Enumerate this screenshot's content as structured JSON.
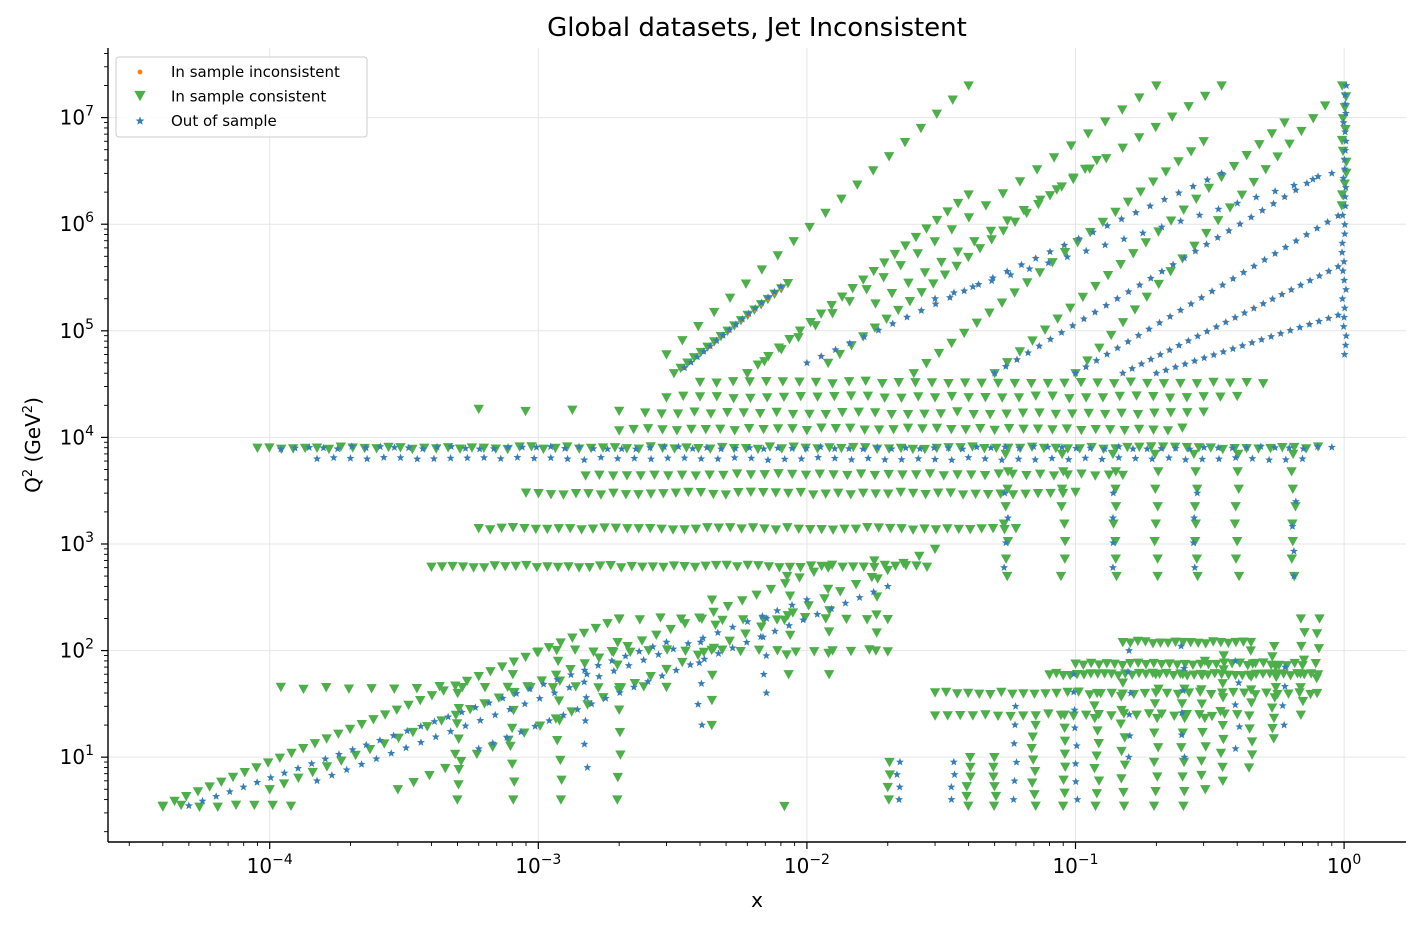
{
  "chart_data": {
    "type": "scatter",
    "title": "Global datasets, Jet Inconsistent",
    "xlabel": "x",
    "ylabel_base": "Q",
    "ylabel_sup": "2",
    "ylabel_unit_open": " (GeV",
    "ylabel_unit_sup": "2",
    "ylabel_unit_close": ")",
    "x_scale": "log",
    "y_scale": "log",
    "xlim": [
      2.5e-05,
      1.7
    ],
    "ylim": [
      1.6,
      45000000.0
    ],
    "grid": true,
    "legend_position": "top-left",
    "x_ticks": [
      {
        "base": "10",
        "exp": "−4",
        "value": 0.0001
      },
      {
        "base": "10",
        "exp": "−3",
        "value": 0.001
      },
      {
        "base": "10",
        "exp": "−2",
        "value": 0.01
      },
      {
        "base": "10",
        "exp": "−1",
        "value": 0.1
      },
      {
        "base": "10",
        "exp": "0",
        "value": 1
      }
    ],
    "y_ticks": [
      {
        "base": "10",
        "exp": "1",
        "value": 10
      },
      {
        "base": "10",
        "exp": "2",
        "value": 100
      },
      {
        "base": "10",
        "exp": "3",
        "value": 1000
      },
      {
        "base": "10",
        "exp": "4",
        "value": 10000
      },
      {
        "base": "10",
        "exp": "5",
        "value": 100000
      },
      {
        "base": "10",
        "exp": "6",
        "value": 1000000
      },
      {
        "base": "10",
        "exp": "7",
        "value": 10000000
      }
    ],
    "series": [
      {
        "name": "In sample inconsistent",
        "marker": "circle",
        "color": "#ff7f0e"
      },
      {
        "name": "In sample consistent",
        "marker": "triangle-down",
        "color": "#4daf4a"
      },
      {
        "name": "Out of sample",
        "marker": "star",
        "color": "#377eb8"
      }
    ],
    "point_groups": [
      {
        "series": 1,
        "kind": "hline",
        "y": 8000,
        "x_range": [
          9e-05,
          0.8
        ],
        "n": 90
      },
      {
        "series": 2,
        "kind": "hline",
        "y": 8000,
        "x_range": [
          0.00011,
          0.9
        ],
        "n": 75
      },
      {
        "series": 2,
        "kind": "hline",
        "y": 6300,
        "x_range": [
          0.00015,
          0.7
        ],
        "n": 60
      },
      {
        "series": 1,
        "kind": "hline",
        "y": 620,
        "x_range": [
          0.0004,
          0.028
        ],
        "n": 48
      },
      {
        "series": 1,
        "kind": "hline",
        "y": 1400,
        "x_range": [
          0.0006,
          0.06
        ],
        "n": 48
      },
      {
        "series": 1,
        "kind": "hline",
        "y": 3000,
        "x_range": [
          0.0009,
          0.1
        ],
        "n": 45
      },
      {
        "series": 1,
        "kind": "hline",
        "y": 4500,
        "x_range": [
          0.0015,
          0.15
        ],
        "n": 40
      },
      {
        "series": 1,
        "kind": "hline",
        "y": 12000,
        "x_range": [
          0.002,
          0.25
        ],
        "n": 40
      },
      {
        "series": 1,
        "kind": "hline",
        "y": 17000,
        "x_range": [
          0.0025,
          0.3
        ],
        "n": 35
      },
      {
        "series": 1,
        "kind": "hline",
        "y": 24000,
        "x_range": [
          0.003,
          0.4
        ],
        "n": 35
      },
      {
        "series": 1,
        "kind": "hline",
        "y": 33000,
        "x_range": [
          0.004,
          0.5
        ],
        "n": 35
      },
      {
        "series": 1,
        "kind": "diag",
        "x_range": [
          0.0032,
          0.0085
        ],
        "y_range": [
          40000,
          280000
        ],
        "n": 18
      },
      {
        "series": 1,
        "kind": "diag",
        "x_range": [
          0.006,
          0.04
        ],
        "y_range": [
          40000,
          1900000
        ],
        "n": 22
      },
      {
        "series": 1,
        "kind": "diag",
        "x_range": [
          0.012,
          0.12
        ],
        "y_range": [
          50000,
          4000000
        ],
        "n": 24
      },
      {
        "series": 1,
        "kind": "diag",
        "x_range": [
          0.025,
          0.3
        ],
        "y_range": [
          40000,
          6000000
        ],
        "n": 24
      },
      {
        "series": 1,
        "kind": "diag",
        "x_range": [
          0.05,
          0.6
        ],
        "y_range": [
          40000,
          9000000
        ],
        "n": 24
      },
      {
        "series": 1,
        "kind": "diag",
        "x_range": [
          0.1,
          0.85
        ],
        "y_range": [
          40000,
          13000000
        ],
        "n": 22
      },
      {
        "series": 1,
        "kind": "diag",
        "x_range": [
          0.018,
          0.35
        ],
        "y_range": [
          180000,
          20000000
        ],
        "n": 22
      },
      {
        "series": 0,
        "kind": "diag",
        "x_range": [
          0.0035,
          0.008
        ],
        "y_range": [
          45000,
          250000
        ],
        "n": 16
      },
      {
        "series": 0,
        "kind": "diag",
        "x_range": [
          0.01,
          0.35
        ],
        "y_range": [
          50000,
          3000000
        ],
        "n": 30
      },
      {
        "series": 0,
        "kind": "diag",
        "x_range": [
          0.05,
          0.8
        ],
        "y_range": [
          40000,
          2800000
        ],
        "n": 30
      },
      {
        "series": 0,
        "kind": "diag",
        "x_range": [
          0.1,
          0.95
        ],
        "y_range": [
          40000,
          1200000
        ],
        "n": 26
      },
      {
        "series": 0,
        "kind": "diag",
        "x_range": [
          0.15,
          0.95
        ],
        "y_range": [
          40000,
          400000
        ],
        "n": 24
      },
      {
        "series": 0,
        "kind": "diag",
        "x_range": [
          0.2,
          0.95
        ],
        "y_range": [
          40000,
          140000
        ],
        "n": 20
      },
      {
        "series": 2,
        "kind": "diag",
        "x_range": [
          0.0035,
          0.008
        ],
        "y_range": [
          45000,
          260000
        ],
        "n": 16
      },
      {
        "series": 2,
        "kind": "diag",
        "x_range": [
          0.01,
          0.35
        ],
        "y_range": [
          50000,
          3000000
        ],
        "n": 30
      },
      {
        "series": 2,
        "kind": "diag",
        "x_range": [
          0.05,
          0.8
        ],
        "y_range": [
          40000,
          2800000
        ],
        "n": 30
      },
      {
        "series": 2,
        "kind": "diag",
        "x_range": [
          0.1,
          0.95
        ],
        "y_range": [
          40000,
          1200000
        ],
        "n": 26
      },
      {
        "series": 2,
        "kind": "diag",
        "x_range": [
          0.15,
          0.95
        ],
        "y_range": [
          40000,
          400000
        ],
        "n": 24
      },
      {
        "series": 2,
        "kind": "diag",
        "x_range": [
          0.2,
          0.95
        ],
        "y_range": [
          40000,
          140000
        ],
        "n": 20
      },
      {
        "series": 2,
        "kind": "diag",
        "x_range": [
          0.03,
          0.9
        ],
        "y_range": [
          200000,
          3000000
        ],
        "n": 22
      },
      {
        "series": 2,
        "kind": "vline",
        "x": 1.0,
        "y_range": [
          60000,
          20000000
        ],
        "n": 30
      },
      {
        "series": 1,
        "kind": "vline",
        "x": 1.0,
        "y_range": [
          1500000,
          20000000
        ],
        "n": 12
      },
      {
        "series": 1,
        "kind": "diag",
        "x_range": [
          4e-05,
          0.002
        ],
        "y_range": [
          3.5,
          200
        ],
        "n": 40
      },
      {
        "series": 1,
        "kind": "diag",
        "x_range": [
          0.0001,
          0.012
        ],
        "y_range": [
          5,
          620
        ],
        "n": 40
      },
      {
        "series": 1,
        "kind": "diag",
        "x_range": [
          0.0003,
          0.03
        ],
        "y_range": [
          5,
          900
        ],
        "n": 35
      },
      {
        "series": 1,
        "kind": "hline",
        "y": 3.5,
        "x_range": [
          4e-05,
          0.00012
        ],
        "n": 8
      },
      {
        "series": 2,
        "kind": "diag",
        "x_range": [
          5e-05,
          0.003
        ],
        "y_range": [
          3.5,
          120
        ],
        "n": 36
      },
      {
        "series": 2,
        "kind": "diag",
        "x_range": [
          0.00015,
          0.01
        ],
        "y_range": [
          6,
          300
        ],
        "n": 34
      },
      {
        "series": 2,
        "kind": "diag",
        "x_range": [
          0.0006,
          0.02
        ],
        "y_range": [
          12,
          400
        ],
        "n": 30
      },
      {
        "series": 2,
        "kind": "vline",
        "x": 0.022,
        "y_range": [
          4,
          9
        ],
        "n": 4
      },
      {
        "series": 2,
        "kind": "vline",
        "x": 0.035,
        "y_range": [
          4,
          9
        ],
        "n": 4
      },
      {
        "series": 2,
        "kind": "vline",
        "x": 0.06,
        "y_range": [
          4,
          30
        ],
        "n": 6
      },
      {
        "series": 2,
        "kind": "vline",
        "x": 0.1,
        "y_range": [
          4,
          60
        ],
        "n": 8
      },
      {
        "series": 2,
        "kind": "vline",
        "x": 0.16,
        "y_range": [
          10,
          100
        ],
        "n": 6
      },
      {
        "series": 2,
        "kind": "vline",
        "x": 0.25,
        "y_range": [
          10,
          110
        ],
        "n": 6
      },
      {
        "series": 2,
        "kind": "vline",
        "x": 0.4,
        "y_range": [
          12,
          80
        ],
        "n": 5
      },
      {
        "series": 2,
        "kind": "vline",
        "x": 0.6,
        "y_range": [
          20,
          70
        ],
        "n": 4
      },
      {
        "series": 1,
        "kind": "hline",
        "y": 60,
        "x_range": [
          0.08,
          0.8
        ],
        "n": 40
      },
      {
        "series": 1,
        "kind": "hline",
        "y": 75,
        "x_range": [
          0.1,
          0.7
        ],
        "n": 30
      },
      {
        "series": 1,
        "kind": "hline",
        "y": 120,
        "x_range": [
          0.15,
          0.45
        ],
        "n": 18
      },
      {
        "series": 1,
        "kind": "hline",
        "y": 25,
        "x_range": [
          0.03,
          0.4
        ],
        "n": 25
      },
      {
        "series": 1,
        "kind": "hline",
        "y": 40,
        "x_range": [
          0.03,
          0.75
        ],
        "n": 35
      },
      {
        "series": 1,
        "kind": "vline",
        "x": 0.02,
        "y_range": [
          4,
          9
        ],
        "n": 4
      },
      {
        "series": 1,
        "kind": "vline",
        "x": 0.04,
        "y_range": [
          3.5,
          10
        ],
        "n": 6
      },
      {
        "series": 1,
        "kind": "vline",
        "x": 0.05,
        "y_range": [
          3.5,
          10
        ],
        "n": 6
      },
      {
        "series": 1,
        "kind": "vline",
        "x": 0.07,
        "y_range": [
          3.5,
          20
        ],
        "n": 8
      },
      {
        "series": 1,
        "kind": "vline",
        "x": 0.09,
        "y_range": [
          3.5,
          25
        ],
        "n": 8
      },
      {
        "series": 1,
        "kind": "vline",
        "x": 0.12,
        "y_range": [
          3.5,
          40
        ],
        "n": 10
      },
      {
        "series": 1,
        "kind": "vline",
        "x": 0.15,
        "y_range": [
          3.5,
          50
        ],
        "n": 10
      },
      {
        "series": 1,
        "kind": "vline",
        "x": 0.2,
        "y_range": [
          3.5,
          60
        ],
        "n": 10
      },
      {
        "series": 1,
        "kind": "vline",
        "x": 0.25,
        "y_range": [
          3.5,
          60
        ],
        "n": 10
      },
      {
        "series": 1,
        "kind": "vline",
        "x": 0.3,
        "y_range": [
          5,
          80
        ],
        "n": 10
      },
      {
        "series": 1,
        "kind": "vline",
        "x": 0.35,
        "y_range": [
          6,
          90
        ],
        "n": 10
      },
      {
        "series": 1,
        "kind": "vline",
        "x": 0.45,
        "y_range": [
          8,
          100
        ],
        "n": 10
      },
      {
        "series": 1,
        "kind": "vline",
        "x": 0.55,
        "y_range": [
          15,
          110
        ],
        "n": 10
      },
      {
        "series": 1,
        "kind": "vline",
        "x": 0.7,
        "y_range": [
          25,
          200
        ],
        "n": 8
      },
      {
        "series": 1,
        "kind": "vline",
        "x": 0.8,
        "y_range": [
          40,
          200
        ],
        "n": 6
      },
      {
        "series": 1,
        "kind": "vline",
        "x": 0.055,
        "y_range": [
          500,
          7000
        ],
        "n": 8
      },
      {
        "series": 1,
        "kind": "vline",
        "x": 0.09,
        "y_range": [
          500,
          7000
        ],
        "n": 8
      },
      {
        "series": 1,
        "kind": "vline",
        "x": 0.14,
        "y_range": [
          500,
          7000
        ],
        "n": 8
      },
      {
        "series": 1,
        "kind": "vline",
        "x": 0.2,
        "y_range": [
          500,
          7000
        ],
        "n": 8
      },
      {
        "series": 1,
        "kind": "vline",
        "x": 0.28,
        "y_range": [
          500,
          7000
        ],
        "n": 8
      },
      {
        "series": 1,
        "kind": "vline",
        "x": 0.4,
        "y_range": [
          500,
          7000
        ],
        "n": 8
      },
      {
        "series": 1,
        "kind": "vline",
        "x": 0.65,
        "y_range": [
          500,
          7000
        ],
        "n": 8
      },
      {
        "series": 2,
        "kind": "vline",
        "x": 0.055,
        "y_range": [
          600,
          3000
        ],
        "n": 4
      },
      {
        "series": 2,
        "kind": "vline",
        "x": 0.14,
        "y_range": [
          600,
          3000
        ],
        "n": 4
      },
      {
        "series": 2,
        "kind": "vline",
        "x": 0.28,
        "y_range": [
          600,
          3000
        ],
        "n": 4
      },
      {
        "series": 2,
        "kind": "vline",
        "x": 0.65,
        "y_range": [
          500,
          2500
        ],
        "n": 4
      },
      {
        "series": 1,
        "kind": "vline",
        "x": 0.018,
        "y_range": [
          100,
          700
        ],
        "n": 6
      },
      {
        "series": 1,
        "kind": "vline",
        "x": 0.0085,
        "y_range": [
          60,
          500
        ],
        "n": 6
      },
      {
        "series": 1,
        "kind": "vline",
        "x": 0.012,
        "y_range": [
          60,
          600
        ],
        "n": 6
      },
      {
        "series": 1,
        "kind": "vline",
        "x": 0.0045,
        "y_range": [
          20,
          300
        ],
        "n": 6
      },
      {
        "series": 1,
        "kind": "vline",
        "x": 0.002,
        "y_range": [
          4,
          120
        ],
        "n": 8
      },
      {
        "series": 1,
        "kind": "vline",
        "x": 0.0012,
        "y_range": [
          4,
          80
        ],
        "n": 8
      },
      {
        "series": 1,
        "kind": "vline",
        "x": 0.0008,
        "y_range": [
          4,
          60
        ],
        "n": 8
      },
      {
        "series": 1,
        "kind": "vline",
        "x": 0.0005,
        "y_range": [
          4,
          40
        ],
        "n": 8
      },
      {
        "series": 2,
        "kind": "vline",
        "x": 0.0015,
        "y_range": [
          8,
          60
        ],
        "n": 5
      },
      {
        "series": 2,
        "kind": "vline",
        "x": 0.004,
        "y_range": [
          20,
          120
        ],
        "n": 5
      },
      {
        "series": 2,
        "kind": "vline",
        "x": 0.007,
        "y_range": [
          40,
          200
        ],
        "n": 5
      },
      {
        "series": 1,
        "kind": "hline",
        "y": 45,
        "x_range": [
          0.00011,
          0.003
        ],
        "n": 18
      },
      {
        "series": 1,
        "kind": "hline",
        "y": 18000,
        "x_range": [
          0.0006,
          0.002
        ],
        "n": 4
      },
      {
        "series": 1,
        "kind": "hline",
        "y": 100,
        "x_range": [
          0.001,
          0.02
        ],
        "n": 20
      },
      {
        "series": 1,
        "kind": "hline",
        "y": 200,
        "x_range": [
          0.002,
          0.02
        ],
        "n": 14
      },
      {
        "series": 1,
        "kind": "diag",
        "x_range": [
          0.003,
          0.04
        ],
        "y_range": [
          60000,
          20000000
        ],
        "n": 20
      },
      {
        "series": 1,
        "kind": "diag",
        "x_range": [
          0.006,
          0.2
        ],
        "y_range": [
          40000,
          20000000
        ],
        "n": 25
      },
      {
        "series": 1,
        "kind": "hline",
        "y": 3.5,
        "x_range": [
          0.008,
          0.0085
        ],
        "n": 1
      }
    ]
  }
}
